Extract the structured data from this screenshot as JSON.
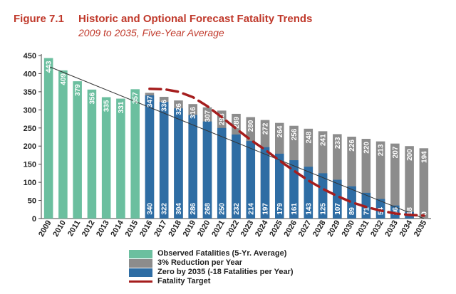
{
  "header": {
    "figure_label": "Figure 7.1",
    "title": "Historic and Optional Forecast Fatality Trends",
    "subtitle": "2009 to 2035, Five-Year Average"
  },
  "colors": {
    "observed": "#6bbf9f",
    "reduction3": "#8c8c8c",
    "zero": "#2e6da4",
    "target": "#a51d1d",
    "trend": "#333333"
  },
  "chart_data": {
    "type": "bar",
    "title": "Historic and Optional Forecast Fatality Trends",
    "subtitle": "2009 to 2035, Five-Year Average",
    "categories": [
      "2009",
      "2010",
      "2011",
      "2012",
      "2013",
      "2014",
      "2015",
      "2016",
      "2017",
      "2018",
      "2019",
      "2020",
      "2021",
      "2022",
      "2023",
      "2024",
      "2025",
      "2026",
      "2027",
      "2028",
      "2029",
      "2030",
      "2031",
      "2032",
      "2033",
      "2034",
      "2035"
    ],
    "ylim": [
      0,
      450
    ],
    "yticks": [
      0,
      50,
      100,
      150,
      200,
      250,
      300,
      350,
      400,
      450
    ],
    "grid": false,
    "legend_position": "bottom",
    "series": [
      {
        "name": "Observed Fatalities (5-Yr. Average)",
        "values": [
          443,
          409,
          379,
          356,
          335,
          331,
          357,
          null,
          null,
          null,
          null,
          null,
          null,
          null,
          null,
          null,
          null,
          null,
          null,
          null,
          null,
          null,
          null,
          null,
          null,
          null,
          null
        ]
      },
      {
        "name": "3% Reduction per Year",
        "values": [
          null,
          null,
          null,
          null,
          null,
          null,
          null,
          347,
          336,
          326,
          316,
          307,
          298,
          289,
          280,
          272,
          264,
          256,
          248,
          241,
          233,
          226,
          220,
          213,
          207,
          200,
          194
        ]
      },
      {
        "name": "Zero by 2035 (-18 Fatalities per Year)",
        "values": [
          null,
          null,
          null,
          null,
          null,
          null,
          null,
          340,
          322,
          304,
          286,
          268,
          250,
          232,
          214,
          197,
          179,
          161,
          143,
          125,
          107,
          89,
          71,
          54,
          36,
          18,
          0
        ]
      },
      {
        "name": "Fatality Target",
        "type": "line",
        "style": "dashed",
        "values": [
          null,
          null,
          null,
          null,
          null,
          null,
          null,
          358,
          357,
          350,
          335,
          310,
          280,
          248,
          217,
          190,
          160,
          132,
          105,
          82,
          62,
          45,
          32,
          22,
          14,
          10,
          8
        ]
      }
    ],
    "trendline": {
      "from": [
        "2009",
        420
      ],
      "to": [
        "2035",
        0
      ]
    }
  }
}
